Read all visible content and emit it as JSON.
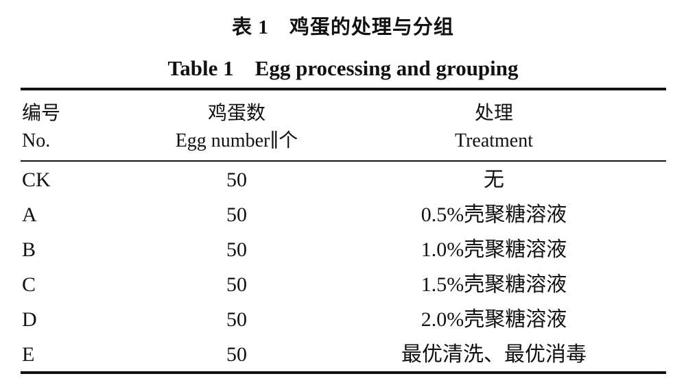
{
  "title": {
    "cn": "表 1　鸡蛋的处理与分组",
    "en": "Table 1　Egg processing and grouping"
  },
  "table": {
    "headers": [
      {
        "cn": "编号",
        "en": "No."
      },
      {
        "cn": "鸡蛋数",
        "en": "Egg number∥个"
      },
      {
        "cn": "处理",
        "en": "Treatment"
      }
    ],
    "rows": [
      {
        "no": "CK",
        "count": "50",
        "treatment": "无"
      },
      {
        "no": "A",
        "count": "50",
        "treatment": "0.5%壳聚糖溶液"
      },
      {
        "no": "B",
        "count": "50",
        "treatment": "1.0%壳聚糖溶液"
      },
      {
        "no": "C",
        "count": "50",
        "treatment": "1.5%壳聚糖溶液"
      },
      {
        "no": "D",
        "count": "50",
        "treatment": "2.0%壳聚糖溶液"
      },
      {
        "no": "E",
        "count": "50",
        "treatment": "最优清洗、最优消毒"
      }
    ]
  }
}
